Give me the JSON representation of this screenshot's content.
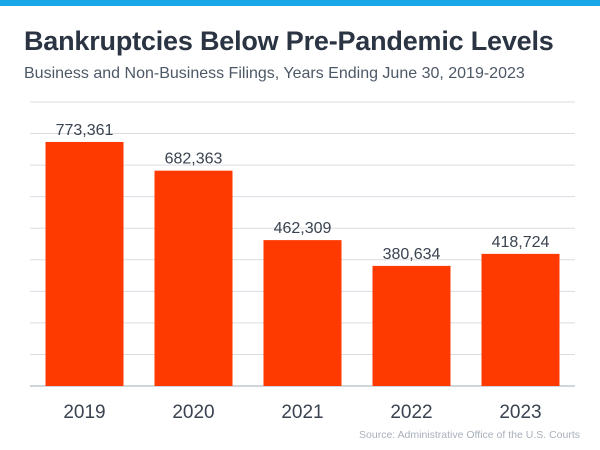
{
  "title": "Bankruptcies Below Pre-Pandemic Levels",
  "subtitle": "Business and Non-Business Filings, Years Ending June 30, 2019-2023",
  "source": "Source: Administrative Office of the U.S. Courts",
  "colors": {
    "accent_bar": "#1aa7e8",
    "bar_fill": "#ff3a00",
    "grid": "#d9dde2",
    "axis": "#b5bcc5",
    "text_dark": "#2b3442",
    "label": "#3a4350"
  },
  "chart_data": {
    "type": "bar",
    "categories": [
      "2019",
      "2020",
      "2021",
      "2022",
      "2023"
    ],
    "values": [
      773361,
      682363,
      462309,
      380634,
      418724
    ],
    "value_labels": [
      "773,361",
      "682,363",
      "462,309",
      "380,634",
      "418,724"
    ],
    "title": "Bankruptcies Below Pre-Pandemic Levels",
    "subtitle": "Business and Non-Business Filings, Years Ending June 30, 2019-2023",
    "xlabel": "",
    "ylabel": "",
    "ylim": [
      0,
      900000
    ],
    "grid_step": 100000,
    "grid": true,
    "legend": "none"
  }
}
